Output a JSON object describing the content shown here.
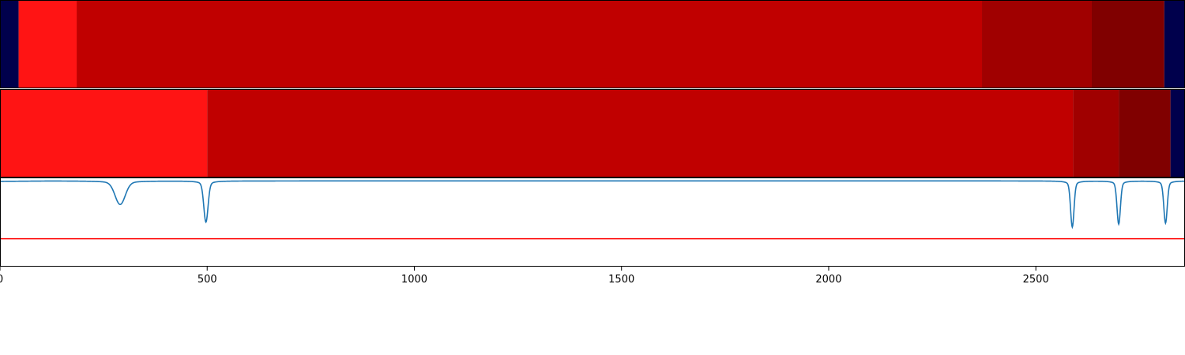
{
  "chart_data": {
    "type": "heatmap",
    "title": "",
    "xlabel": "",
    "ylabel": "",
    "xlim": [
      0,
      2860
    ],
    "x_ticks": [
      0,
      500,
      1000,
      1500,
      2000,
      2500
    ],
    "x_tick_labels": [
      "0",
      "500",
      "1000",
      "1500",
      "2000",
      "2500"
    ],
    "segment_rows": [
      {
        "segments": [
          {
            "start": 0,
            "end": 45,
            "color": "#00004c"
          },
          {
            "start": 45,
            "end": 185,
            "color": "#ff1414"
          },
          {
            "start": 185,
            "end": 2370,
            "color": "#c00000"
          },
          {
            "start": 2370,
            "end": 2635,
            "color": "#a00000"
          },
          {
            "start": 2635,
            "end": 2810,
            "color": "#800000"
          },
          {
            "start": 2810,
            "end": 2860,
            "color": "#00004c"
          }
        ]
      },
      {
        "segments": [
          {
            "start": 0,
            "end": 500,
            "color": "#ff1414"
          },
          {
            "start": 500,
            "end": 2590,
            "color": "#c00000"
          },
          {
            "start": 2590,
            "end": 2700,
            "color": "#a00000"
          },
          {
            "start": 2700,
            "end": 2825,
            "color": "#800000"
          },
          {
            "start": 2825,
            "end": 2860,
            "color": "#00004c"
          }
        ]
      }
    ],
    "line_panel": {
      "ylim": [
        0,
        1
      ],
      "threshold": 0.31,
      "threshold_color": "#ff0000",
      "line_color": "#1f77b4",
      "baseline": 0.97,
      "dips": [
        {
          "center": 290,
          "depth": 0.24,
          "width": 12
        },
        {
          "center": 497,
          "depth": 0.42,
          "width": 5
        },
        {
          "center": 2588,
          "depth": 0.47,
          "width": 4
        },
        {
          "center": 2700,
          "depth": 0.44,
          "width": 4
        },
        {
          "center": 2813,
          "depth": 0.43,
          "width": 4
        }
      ],
      "left_start": {
        "x": 0,
        "y": 0.965
      }
    }
  }
}
